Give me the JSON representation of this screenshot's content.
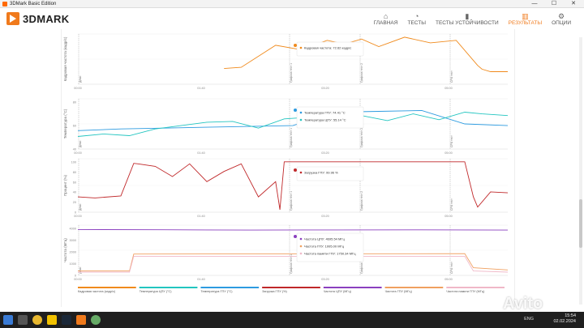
{
  "window": {
    "title": "3DMark Basic Edition",
    "minimize": "—",
    "maximize": "☐",
    "close": "✕"
  },
  "app": {
    "logo_text": "3DMARK"
  },
  "nav": [
    {
      "label": "ГЛАВНАЯ",
      "icon": "home-icon",
      "glyph": "⌂"
    },
    {
      "label": "ТЕСТЫ",
      "icon": "tests-icon",
      "glyph": "◔"
    },
    {
      "label": "ТЕСТЫ УСТОЙЧИВОСТИ",
      "icon": "stress-icon",
      "glyph": "▮"
    },
    {
      "label": "РЕЗУЛЬТАТЫ",
      "icon": "results-icon",
      "glyph": "▥",
      "active": true
    },
    {
      "label": "ОПЦИИ",
      "icon": "options-icon",
      "glyph": "⚙"
    }
  ],
  "colors": {
    "fps": "#f08a1c",
    "cpu_temp": "#22c5c0",
    "gpu_temp": "#2d9be0",
    "gpu_load": "#c0282a",
    "cpu_clock": "#8a3fbf",
    "gpu_clock": "#f0a060",
    "mem_clock": "#f0b8c8",
    "accent": "#f07a1c"
  },
  "chart_data": [
    {
      "type": "line",
      "ylabel": "Кадровая частота (кадр/с)",
      "x_ticks": [
        "00:00",
        "01:40",
        "03:20",
        "05:00"
      ],
      "markers": [
        "Демо",
        "Графика тест 1",
        "Графика тест 2",
        "CPU тест"
      ],
      "tooltip": "Кадровая частота: 72.62 кадр/с",
      "series": [
        {
          "name": "Кадровая частота (кадр/с)",
          "color": "fps",
          "x": [
            0,
            20,
            40,
            60,
            80,
            100,
            130,
            160,
            200,
            240,
            280,
            340,
            380,
            460,
            520,
            580,
            620,
            660,
            700,
            760,
            820,
            880,
            930,
            940,
            960,
            980,
            1000
          ],
          "y": [
            null,
            null,
            null,
            null,
            null,
            null,
            null,
            null,
            null,
            null,
            null,
            25,
            27,
            62,
            55,
            70,
            64,
            72,
            60,
            75,
            66,
            70,
            30,
            24,
            20,
            20,
            20
          ]
        }
      ]
    },
    {
      "type": "line",
      "ylabel": "Температура (°C)",
      "x_ticks": [
        "00:00",
        "01:40",
        "03:20",
        "05:00"
      ],
      "y_ticks": [
        "80",
        "60",
        "40"
      ],
      "markers": [
        "Демо",
        "Графика тест 1",
        "Графика тест 2",
        "CPU тест"
      ],
      "tooltip": [
        "Температура ГПУ: 74.41 °C",
        "Температура ЦПУ: 55.14 °C"
      ],
      "series": [
        {
          "name": "Температура ГПУ (°C)",
          "color": "gpu_temp",
          "x": [
            0,
            100,
            200,
            300,
            400,
            500,
            600,
            700,
            800,
            900,
            1000
          ],
          "y": [
            52,
            54,
            55,
            56,
            57,
            58,
            74,
            75,
            76,
            60,
            58
          ]
        },
        {
          "name": "Температура ЦПУ (°C)",
          "color": "cpu_temp",
          "x": [
            0,
            60,
            120,
            180,
            240,
            300,
            360,
            420,
            480,
            540,
            600,
            660,
            720,
            780,
            840,
            900,
            940,
            1000
          ],
          "y": [
            45,
            48,
            46,
            54,
            58,
            62,
            63,
            55,
            66,
            68,
            62,
            70,
            64,
            72,
            65,
            74,
            72,
            70
          ]
        }
      ]
    },
    {
      "type": "line",
      "ylabel": "Процент (%)",
      "x_ticks": [
        "00:00",
        "01:40",
        "03:20",
        "05:00"
      ],
      "y_ticks": [
        "100",
        "80",
        "60",
        "40",
        "20",
        "0"
      ],
      "markers": [
        "Демо",
        "Графика тест 1",
        "Графика тест 2",
        "CPU тест"
      ],
      "tooltip": "Загрузка ГПУ: 99.96 %",
      "series": [
        {
          "name": "Загрузка ГПУ (%)",
          "color": "gpu_load",
          "x": [
            0,
            40,
            100,
            130,
            140,
            180,
            220,
            260,
            300,
            340,
            380,
            420,
            460,
            470,
            480,
            520,
            600,
            700,
            800,
            900,
            920,
            930,
            960,
            1000
          ],
          "y": [
            30,
            28,
            32,
            96,
            95,
            90,
            70,
            95,
            60,
            80,
            95,
            30,
            60,
            5,
            99,
            99,
            99,
            99,
            99,
            99,
            30,
            10,
            40,
            38
          ]
        }
      ]
    },
    {
      "type": "line",
      "ylabel": "Частота (МГц)",
      "x_ticks": [
        "00:00",
        "01:40",
        "03:20",
        "05:00"
      ],
      "y_ticks": [
        "4000",
        "3000",
        "2000",
        "1000",
        "0"
      ],
      "markers": [
        "Демо",
        "Графика тест 1",
        "Графика тест 2",
        "CPU тест"
      ],
      "tooltip": [
        "Частота ЦПУ: 4695.54 МГц",
        "Частота ГПУ: 1995.00 МГц",
        "Частота памяти ГПУ: 1750.34 МГц"
      ],
      "series": [
        {
          "name": "Частота ЦПУ (МГц)",
          "color": "cpu_clock",
          "x": [
            0,
            200,
            400,
            600,
            800,
            1000
          ],
          "y": [
            4200,
            4180,
            4150,
            4160,
            4170,
            4150
          ]
        },
        {
          "name": "Частота ГПУ (МГц)",
          "color": "gpu_clock",
          "x": [
            0,
            120,
            130,
            900,
            920,
            1000
          ],
          "y": [
            400,
            400,
            1950,
            1990,
            700,
            500
          ]
        },
        {
          "name": "Частота памяти ГПУ (МГц)",
          "color": "mem_clock",
          "x": [
            0,
            120,
            130,
            900,
            920,
            1000
          ],
          "y": [
            300,
            300,
            1750,
            1750,
            400,
            300
          ]
        }
      ]
    }
  ],
  "legend": [
    {
      "label": "Кадровая частота (кадр/с)",
      "color": "fps"
    },
    {
      "label": "Температура ЦПУ (°C)",
      "color": "cpu_temp"
    },
    {
      "label": "Температура ГПУ (°C)",
      "color": "gpu_temp"
    },
    {
      "label": "Загрузка ГПУ (%)",
      "color": "gpu_load"
    },
    {
      "label": "Частота ЦПУ (МГц)",
      "color": "cpu_clock"
    },
    {
      "label": "Частота ГПУ (МГц)",
      "color": "gpu_clock"
    },
    {
      "label": "Частота памяти ГПУ (МГц)",
      "color": "mem_clock"
    }
  ],
  "taskbar": {
    "lang": "ENG",
    "time": "15:54",
    "date": "02.02.2024",
    "watermark": "Avito"
  }
}
